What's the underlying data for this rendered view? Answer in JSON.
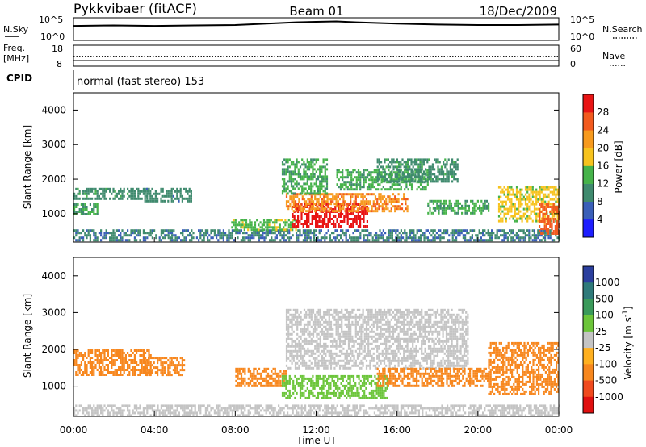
{
  "header": {
    "radar": "Pykkvibaer (fitACF)",
    "beam": "Beam 01",
    "date": "18/Dec/2009"
  },
  "nsky_panel": {
    "left_label": "N.Sky",
    "left_ticks": [
      "10^5",
      "10^0"
    ],
    "right_label": "N.Search",
    "right_ticks": [
      "10^5",
      "10^0"
    ]
  },
  "freq_panel": {
    "left_label_1": "Freq.",
    "left_label_2": "[MHz]",
    "left_ticks": [
      "18",
      "8"
    ],
    "right_label": "Nave",
    "right_ticks": [
      "60",
      "0"
    ]
  },
  "cpid": {
    "label": "CPID",
    "value": "normal (fast stereo) 153"
  },
  "colors": {
    "power_scale": [
      "#1e1eff",
      "#3a5fb8",
      "#3f8a6e",
      "#46b34a",
      "#f7c31e",
      "#f79a1e",
      "#f25a1e",
      "#e81414"
    ],
    "velocity_scale": [
      "#2b3f9e",
      "#2f7a7a",
      "#3a9a5a",
      "#6cc53a",
      "#c4c4c4",
      "#ffb020",
      "#f7871e",
      "#f04a1e",
      "#e01010"
    ]
  },
  "chart_data": [
    {
      "type": "heatmap",
      "title": "",
      "xlabel": "Time UT",
      "ylabel": "Slant Range [km]",
      "x_ticks": [
        "00:00",
        "04:00",
        "08:00",
        "12:00",
        "16:00",
        "20:00",
        "00:00"
      ],
      "y_ticks": [
        "1000",
        "2000",
        "3000",
        "4000"
      ],
      "xlim": [
        0,
        24
      ],
      "ylim": [
        180,
        4500
      ],
      "colorbar": {
        "label": "Power [dB]",
        "ticks": [
          "4",
          "8",
          "12",
          "16",
          "20",
          "24",
          "28"
        ],
        "range": [
          0,
          30
        ]
      },
      "regions": [
        {
          "t0": 0.0,
          "t1": 24.0,
          "r0": 200,
          "r1": 550,
          "value": 8
        },
        {
          "t0": 0.0,
          "t1": 3.7,
          "r0": 1400,
          "r1": 1750,
          "value": 10
        },
        {
          "t0": 0.0,
          "t1": 1.2,
          "r0": 1000,
          "r1": 1300,
          "value": 11
        },
        {
          "t0": 3.5,
          "t1": 5.8,
          "r0": 1350,
          "r1": 1750,
          "value": 9
        },
        {
          "t0": 7.8,
          "t1": 11.0,
          "r0": 500,
          "r1": 850,
          "value": 14
        },
        {
          "t0": 10.8,
          "t1": 14.5,
          "r0": 650,
          "r1": 1300,
          "value": 28
        },
        {
          "t0": 10.5,
          "t1": 16.5,
          "r0": 1100,
          "r1": 1600,
          "value": 22
        },
        {
          "t0": 10.3,
          "t1": 12.5,
          "r0": 1600,
          "r1": 2600,
          "value": 12
        },
        {
          "t0": 13.0,
          "t1": 17.5,
          "r0": 1700,
          "r1": 2300,
          "value": 12
        },
        {
          "t0": 15.0,
          "t1": 19.0,
          "r0": 1900,
          "r1": 2600,
          "value": 10
        },
        {
          "t0": 17.5,
          "t1": 20.5,
          "r0": 1000,
          "r1": 1400,
          "value": 12
        },
        {
          "t0": 21.0,
          "t1": 24.0,
          "r0": 800,
          "r1": 1800,
          "value": 16
        },
        {
          "t0": 23.0,
          "t1": 24.0,
          "r0": 400,
          "r1": 1300,
          "value": 24
        }
      ]
    },
    {
      "type": "heatmap",
      "title": "",
      "xlabel": "Time UT",
      "ylabel": "Slant Range [km]",
      "x_ticks": [
        "00:00",
        "04:00",
        "08:00",
        "12:00",
        "16:00",
        "20:00",
        "00:00"
      ],
      "y_ticks": [
        "1000",
        "2000",
        "3000",
        "4000"
      ],
      "xlim": [
        0,
        24
      ],
      "ylim": [
        180,
        4500
      ],
      "colorbar": {
        "label": "Velocity [m s^-1]",
        "ticks": [
          "1000",
          "500",
          "100",
          "25",
          "-25",
          "-100",
          "-500",
          "-1000"
        ]
      },
      "regions": [
        {
          "t0": 0.0,
          "t1": 24.0,
          "r0": 200,
          "r1": 500,
          "value": 0
        },
        {
          "t0": 0.0,
          "t1": 3.8,
          "r0": 1300,
          "r1": 2000,
          "value": -300
        },
        {
          "t0": 3.5,
          "t1": 5.5,
          "r0": 1300,
          "r1": 1800,
          "value": -200
        },
        {
          "t0": 8.0,
          "t1": 10.5,
          "r0": 1000,
          "r1": 1500,
          "value": -400
        },
        {
          "t0": 10.3,
          "t1": 15.5,
          "r0": 700,
          "r1": 1300,
          "value": 80
        },
        {
          "t0": 10.5,
          "t1": 19.5,
          "r0": 1500,
          "r1": 3100,
          "value": 0
        },
        {
          "t0": 15.0,
          "t1": 20.5,
          "r0": 1000,
          "r1": 1500,
          "value": -250
        },
        {
          "t0": 20.5,
          "t1": 24.0,
          "r0": 800,
          "r1": 2200,
          "value": -300
        }
      ]
    }
  ],
  "nsky_series": {
    "type": "line",
    "x": [
      0,
      2,
      4,
      6,
      8,
      10,
      11,
      12,
      13,
      14,
      16,
      18,
      20,
      22,
      24
    ],
    "y": [
      3.2,
      3.3,
      3.2,
      3.3,
      3.4,
      3.8,
      4.0,
      4.1,
      4.2,
      4.0,
      3.7,
      3.5,
      3.4,
      3.4,
      3.5
    ]
  },
  "freq_series": {
    "type": "line",
    "x": [
      0,
      4,
      8,
      12,
      16,
      20,
      24
    ],
    "y": [
      10.6,
      10.6,
      10.6,
      10.6,
      10.6,
      10.6,
      10.6
    ]
  },
  "nave_series": {
    "type": "line",
    "x": [
      0,
      4,
      8,
      12,
      16,
      20,
      24
    ],
    "y": [
      27,
      27,
      27,
      27,
      27,
      27,
      27
    ]
  }
}
